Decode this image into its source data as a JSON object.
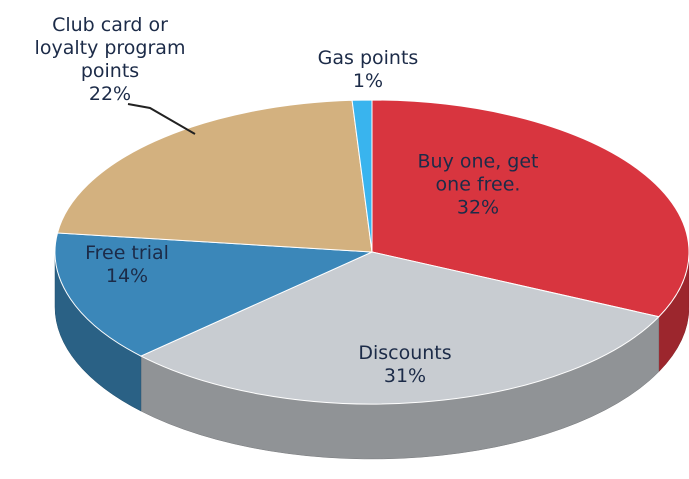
{
  "chart_data": {
    "type": "pie",
    "categories": [
      "Buy one, get one free.",
      "Discounts",
      "Free trial",
      "Club card or loyalty program points",
      "Gas points"
    ],
    "values": [
      32,
      31,
      14,
      22,
      1
    ],
    "value_labels": [
      "32%",
      "31%",
      "14%",
      "22%",
      "1%"
    ],
    "colors": [
      "#d8353f",
      "#c8ccd1",
      "#3b87b9",
      "#d3b17f",
      "#39b4ee"
    ]
  }
}
